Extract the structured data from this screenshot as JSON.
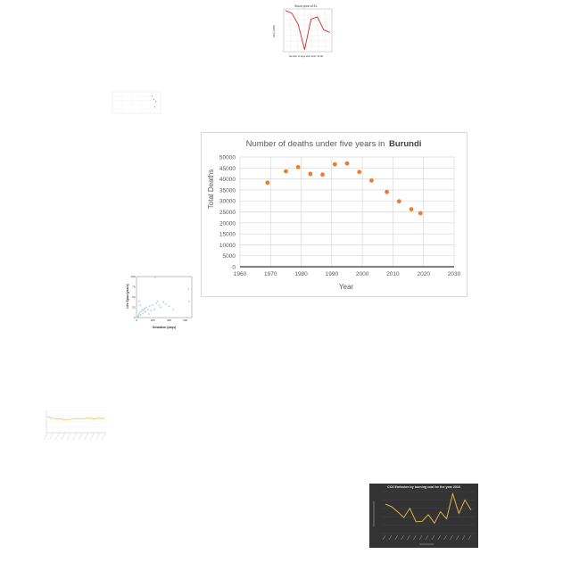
{
  "chart_data": [
    {
      "type": "scatter",
      "title": "Number of deaths under five years in",
      "title_emphasis": "Burundi",
      "xlabel": "Year",
      "ylabel": "Total Deaths",
      "xlim": [
        1960,
        2030
      ],
      "ylim": [
        0,
        50000
      ],
      "x_ticks": [
        1960,
        1970,
        1980,
        1990,
        2000,
        2010,
        2020,
        2030
      ],
      "y_ticks": [
        0,
        5000,
        10000,
        15000,
        20000,
        25000,
        30000,
        35000,
        40000,
        45000,
        50000
      ],
      "grid": true,
      "color": "#ed7d31",
      "points": [
        {
          "x": 1969,
          "y": 38300
        },
        {
          "x": 1975,
          "y": 43500
        },
        {
          "x": 1979,
          "y": 45400
        },
        {
          "x": 1983,
          "y": 42300
        },
        {
          "x": 1987,
          "y": 42000
        },
        {
          "x": 1991,
          "y": 46700
        },
        {
          "x": 1995,
          "y": 47100
        },
        {
          "x": 1999,
          "y": 43200
        },
        {
          "x": 2003,
          "y": 39300
        },
        {
          "x": 2008,
          "y": 34100
        },
        {
          "x": 2012,
          "y": 29800
        },
        {
          "x": 2016,
          "y": 26200
        },
        {
          "x": 2019,
          "y": 24400
        }
      ]
    },
    {
      "type": "line",
      "title": "Stock price of EL",
      "xlabel": "Number of days after 2017-10-30",
      "ylabel": "Price (USD)",
      "grid": true,
      "color": "#d62728",
      "x": [
        0,
        1,
        2,
        3,
        4,
        5,
        6,
        7
      ],
      "values": [
        150.3,
        149.6,
        146.5,
        139.8,
        148.0,
        148.6,
        145.1,
        144.4
      ],
      "ylim": [
        139.5,
        150.5
      ]
    },
    {
      "type": "scatter",
      "title": "",
      "grid": true,
      "points": [
        {
          "x": 0.82,
          "y": 0.8
        },
        {
          "x": 0.86,
          "y": 0.65
        },
        {
          "x": 0.9,
          "y": 0.55
        },
        {
          "x": 0.88,
          "y": 0.3
        }
      ],
      "xlim": [
        0,
        1
      ],
      "ylim": [
        0,
        1
      ]
    },
    {
      "type": "scatter",
      "xlabel": "Gestation (days)",
      "ylabel": "Life Span (years)",
      "x_ticks": [
        0,
        200,
        400,
        600
      ],
      "y_ticks": [
        0,
        25,
        50,
        75,
        100
      ],
      "xlim": [
        0,
        680
      ],
      "ylim": [
        0,
        100
      ],
      "color": "#5aa6c8",
      "points": [
        {
          "x": 20,
          "y": 4
        },
        {
          "x": 30,
          "y": 8
        },
        {
          "x": 40,
          "y": 12
        },
        {
          "x": 50,
          "y": 6
        },
        {
          "x": 60,
          "y": 15
        },
        {
          "x": 70,
          "y": 20
        },
        {
          "x": 80,
          "y": 10
        },
        {
          "x": 90,
          "y": 18
        },
        {
          "x": 100,
          "y": 22
        },
        {
          "x": 110,
          "y": 14
        },
        {
          "x": 120,
          "y": 25
        },
        {
          "x": 140,
          "y": 20
        },
        {
          "x": 150,
          "y": 8
        },
        {
          "x": 160,
          "y": 28
        },
        {
          "x": 180,
          "y": 18
        },
        {
          "x": 200,
          "y": 30
        },
        {
          "x": 220,
          "y": 20
        },
        {
          "x": 240,
          "y": 35
        },
        {
          "x": 260,
          "y": 40
        },
        {
          "x": 280,
          "y": 30
        },
        {
          "x": 300,
          "y": 25
        },
        {
          "x": 330,
          "y": 38
        },
        {
          "x": 360,
          "y": 33
        },
        {
          "x": 400,
          "y": 28
        },
        {
          "x": 450,
          "y": 20
        },
        {
          "x": 30,
          "y": 40
        },
        {
          "x": 25,
          "y": 2
        },
        {
          "x": 45,
          "y": 30
        },
        {
          "x": 230,
          "y": 98
        },
        {
          "x": 640,
          "y": 70
        },
        {
          "x": 650,
          "y": 40
        }
      ]
    },
    {
      "type": "line",
      "title": "",
      "color": "#f2c14e",
      "values": [
        72,
        64,
        63,
        58,
        60,
        64,
        62,
        66,
        63,
        65,
        64
      ],
      "ylim": [
        0,
        100
      ]
    },
    {
      "type": "line",
      "title": "CO2 Emission by burning coal for the year 2016",
      "background": "#333333",
      "color": "#f2c14e",
      "values": [
        70,
        64,
        52,
        38,
        60,
        28,
        29,
        45,
        25,
        52,
        35,
        95,
        48,
        80,
        56
      ],
      "ylim": [
        0,
        100
      ]
    }
  ]
}
